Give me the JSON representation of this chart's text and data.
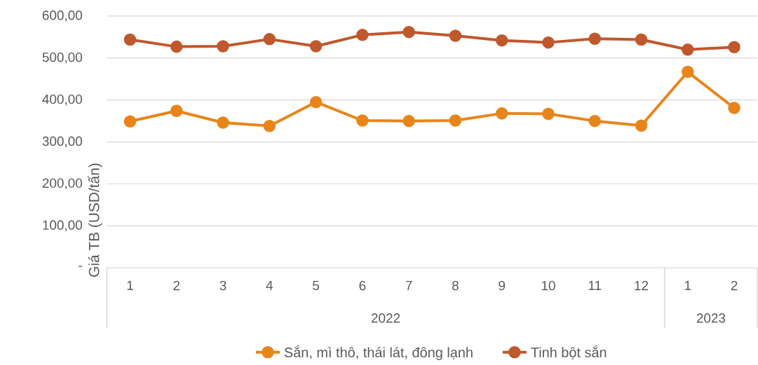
{
  "chart_data": {
    "type": "line",
    "ylabel": "Giá TB (USD/tấn)",
    "categories": [
      "1",
      "2",
      "3",
      "4",
      "5",
      "6",
      "7",
      "8",
      "9",
      "10",
      "11",
      "12",
      "1",
      "2"
    ],
    "annotations": [
      "2022",
      "2023"
    ],
    "series": [
      {
        "name": "Sắn, mì thô, thái lát, đông lạnh",
        "color": "#e8851a",
        "values": [
          349,
          374,
          346,
          338,
          395,
          351,
          350,
          351,
          368,
          367,
          350,
          339,
          467,
          381
        ]
      },
      {
        "name": "Tinh bột sắn",
        "color": "#c0582d",
        "values": [
          544,
          527,
          528,
          545,
          528,
          555,
          562,
          553,
          542,
          537,
          546,
          544,
          520,
          526
        ]
      }
    ],
    "ylim": [
      0,
      600
    ],
    "yticks": [
      {
        "value": 0,
        "label": "-"
      },
      {
        "value": 100,
        "label": "100,00"
      },
      {
        "value": 200,
        "label": "200,00"
      },
      {
        "value": 300,
        "label": "300,00"
      },
      {
        "value": 400,
        "label": "400,00"
      },
      {
        "value": 500,
        "label": "500,00"
      },
      {
        "value": 600,
        "label": "600,00"
      }
    ],
    "grid": "y",
    "legend": "bottom",
    "marker": "circle",
    "line_style": "solid"
  }
}
